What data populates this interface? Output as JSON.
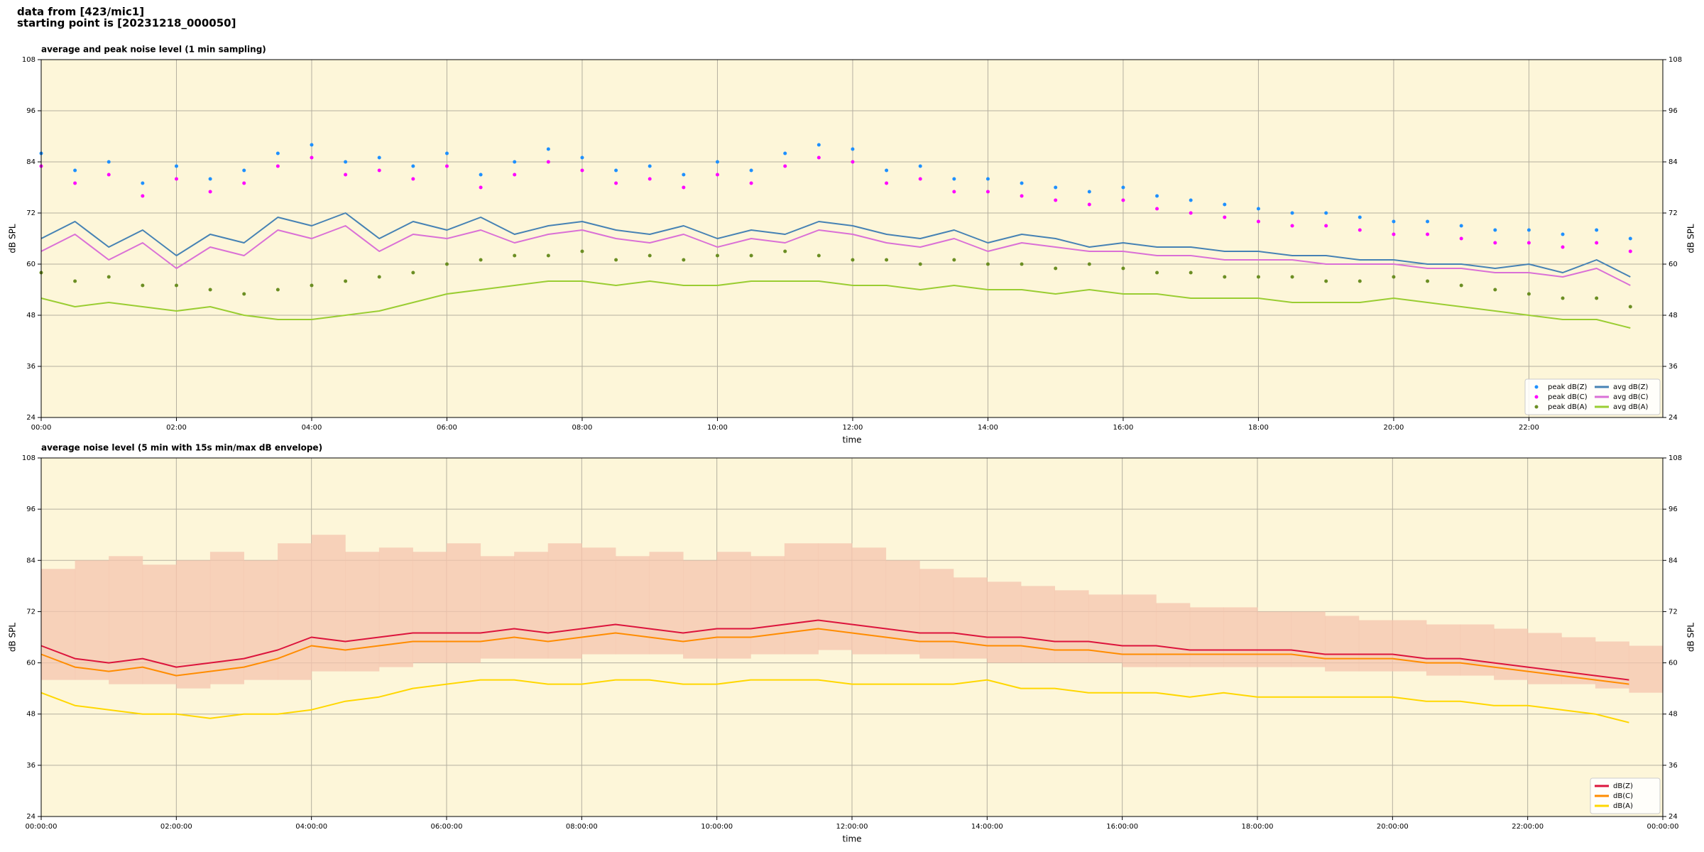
{
  "header": {
    "lines": [
      "data from [423/mic1]",
      "starting point is [20231218_000050]"
    ]
  },
  "chart_data": [
    {
      "type": "line",
      "title": "average and peak noise level (1 min sampling)",
      "xlabel": "time",
      "ylabel": "dB SPL",
      "background": "#fdf6d9",
      "grid": true,
      "legend": "lower right",
      "legend_columns": 2,
      "xlim": [
        0,
        23.98
      ],
      "ylim": [
        24,
        108
      ],
      "yticks": [
        24,
        36,
        48,
        60,
        72,
        84,
        96,
        108
      ],
      "xticks": [
        {
          "value": 0,
          "label": "00:00"
        },
        {
          "value": 2,
          "label": "02:00"
        },
        {
          "value": 4,
          "label": "04:00"
        },
        {
          "value": 6,
          "label": "06:00"
        },
        {
          "value": 8,
          "label": "08:00"
        },
        {
          "value": 10,
          "label": "10:00"
        },
        {
          "value": 12,
          "label": "12:00"
        },
        {
          "value": 14,
          "label": "14:00"
        },
        {
          "value": 16,
          "label": "16:00"
        },
        {
          "value": 18,
          "label": "18:00"
        },
        {
          "value": 20,
          "label": "20:00"
        },
        {
          "value": 22,
          "label": "22:00"
        }
      ],
      "x": [
        0,
        0.5,
        1,
        1.5,
        2,
        2.5,
        3,
        3.5,
        4,
        4.5,
        5,
        5.5,
        6,
        6.5,
        7,
        7.5,
        8,
        8.5,
        9,
        9.5,
        10,
        10.5,
        11,
        11.5,
        12,
        12.5,
        13,
        13.5,
        14,
        14.5,
        15,
        15.5,
        16,
        16.5,
        17,
        17.5,
        18,
        18.5,
        19,
        19.5,
        20,
        20.5,
        21,
        21.5,
        22,
        22.5,
        23,
        23.5
      ],
      "series": [
        {
          "name": "peak dB(Z)",
          "type": "scatter",
          "color": "#1e90ff",
          "values": [
            86,
            82,
            84,
            79,
            83,
            80,
            82,
            86,
            88,
            84,
            85,
            83,
            86,
            81,
            84,
            87,
            85,
            82,
            83,
            81,
            84,
            82,
            86,
            88,
            87,
            82,
            83,
            80,
            80,
            79,
            78,
            77,
            78,
            76,
            75,
            74,
            73,
            72,
            72,
            71,
            70,
            70,
            69,
            68,
            68,
            67,
            68,
            66
          ]
        },
        {
          "name": "peak dB(C)",
          "type": "scatter",
          "color": "#ff00ff",
          "values": [
            83,
            79,
            81,
            76,
            80,
            77,
            79,
            83,
            85,
            81,
            82,
            80,
            83,
            78,
            81,
            84,
            82,
            79,
            80,
            78,
            81,
            79,
            83,
            85,
            84,
            79,
            80,
            77,
            77,
            76,
            75,
            74,
            75,
            73,
            72,
            71,
            70,
            69,
            69,
            68,
            67,
            67,
            66,
            65,
            65,
            64,
            65,
            63
          ]
        },
        {
          "name": "peak dB(A)",
          "type": "scatter",
          "color": "#6b8e23",
          "values": [
            58,
            56,
            57,
            55,
            55,
            54,
            53,
            54,
            55,
            56,
            57,
            58,
            60,
            61,
            62,
            62,
            63,
            61,
            62,
            61,
            62,
            62,
            63,
            62,
            61,
            61,
            60,
            61,
            60,
            60,
            59,
            60,
            59,
            58,
            58,
            57,
            57,
            57,
            56,
            56,
            57,
            56,
            55,
            54,
            53,
            52,
            52,
            50
          ]
        },
        {
          "name": "avg dB(Z)",
          "type": "line",
          "color": "#4682b4",
          "values": [
            66,
            70,
            64,
            68,
            62,
            67,
            65,
            71,
            69,
            72,
            66,
            70,
            68,
            71,
            67,
            69,
            70,
            68,
            67,
            69,
            66,
            68,
            67,
            70,
            69,
            67,
            66,
            68,
            65,
            67,
            66,
            64,
            65,
            64,
            64,
            63,
            63,
            62,
            62,
            61,
            61,
            60,
            60,
            59,
            60,
            58,
            61,
            57
          ]
        },
        {
          "name": "avg dB(C)",
          "type": "line",
          "color": "#da70d6",
          "values": [
            63,
            67,
            61,
            65,
            59,
            64,
            62,
            68,
            66,
            69,
            63,
            67,
            66,
            68,
            65,
            67,
            68,
            66,
            65,
            67,
            64,
            66,
            65,
            68,
            67,
            65,
            64,
            66,
            63,
            65,
            64,
            63,
            63,
            62,
            62,
            61,
            61,
            61,
            60,
            60,
            60,
            59,
            59,
            58,
            58,
            57,
            59,
            55
          ]
        },
        {
          "name": "avg dB(A)",
          "type": "line",
          "color": "#9acd32",
          "values": [
            52,
            50,
            51,
            50,
            49,
            50,
            48,
            47,
            47,
            48,
            49,
            51,
            53,
            54,
            55,
            56,
            56,
            55,
            56,
            55,
            55,
            56,
            56,
            56,
            55,
            55,
            54,
            55,
            54,
            54,
            53,
            54,
            53,
            53,
            52,
            52,
            52,
            51,
            51,
            51,
            52,
            51,
            50,
            49,
            48,
            47,
            47,
            45
          ]
        }
      ]
    },
    {
      "type": "line",
      "title": "average noise level (5 min with 15s min/max dB envelope)",
      "xlabel": "time",
      "ylabel": "dB SPL",
      "background": "#fdf6d9",
      "grid": true,
      "legend": "lower right",
      "legend_columns": 1,
      "xlim": [
        0,
        24
      ],
      "ylim": [
        24,
        108
      ],
      "yticks": [
        24,
        36,
        48,
        60,
        72,
        84,
        96,
        108
      ],
      "xticks": [
        {
          "value": 0,
          "label": "00:00:00"
        },
        {
          "value": 2,
          "label": "02:00:00"
        },
        {
          "value": 4,
          "label": "04:00:00"
        },
        {
          "value": 6,
          "label": "06:00:00"
        },
        {
          "value": 8,
          "label": "08:00:00"
        },
        {
          "value": 10,
          "label": "10:00:00"
        },
        {
          "value": 12,
          "label": "12:00:00"
        },
        {
          "value": 14,
          "label": "14:00:00"
        },
        {
          "value": 16,
          "label": "16:00:00"
        },
        {
          "value": 18,
          "label": "18:00:00"
        },
        {
          "value": 20,
          "label": "20:00:00"
        },
        {
          "value": 22,
          "label": "22:00:00"
        },
        {
          "value": 24,
          "label": "00:00:00"
        }
      ],
      "x": [
        0,
        0.5,
        1,
        1.5,
        2,
        2.5,
        3,
        3.5,
        4,
        4.5,
        5,
        5.5,
        6,
        6.5,
        7,
        7.5,
        8,
        8.5,
        9,
        9.5,
        10,
        10.5,
        11,
        11.5,
        12,
        12.5,
        13,
        13.5,
        14,
        14.5,
        15,
        15.5,
        16,
        16.5,
        17,
        17.5,
        18,
        18.5,
        19,
        19.5,
        20,
        20.5,
        21,
        21.5,
        22,
        22.5,
        23,
        23.5
      ],
      "envelope": {
        "color": "#f4c4ad",
        "lower": [
          56,
          56,
          55,
          55,
          54,
          55,
          56,
          56,
          58,
          58,
          59,
          60,
          60,
          61,
          61,
          61,
          62,
          62,
          62,
          61,
          61,
          62,
          62,
          63,
          62,
          62,
          61,
          61,
          60,
          60,
          60,
          60,
          59,
          59,
          59,
          59,
          59,
          59,
          58,
          58,
          58,
          57,
          57,
          56,
          55,
          55,
          54,
          53
        ],
        "upper": [
          82,
          84,
          85,
          83,
          84,
          86,
          84,
          88,
          90,
          86,
          87,
          86,
          88,
          85,
          86,
          88,
          87,
          85,
          86,
          84,
          86,
          85,
          88,
          88,
          87,
          84,
          82,
          80,
          79,
          78,
          77,
          76,
          76,
          74,
          73,
          73,
          72,
          72,
          71,
          70,
          70,
          69,
          69,
          68,
          67,
          66,
          65,
          64
        ]
      },
      "series": [
        {
          "name": "dB(Z)",
          "type": "line",
          "color": "#dc143c",
          "values": [
            64,
            61,
            60,
            61,
            59,
            60,
            61,
            63,
            66,
            65,
            66,
            67,
            67,
            67,
            68,
            67,
            68,
            69,
            68,
            67,
            68,
            68,
            69,
            70,
            69,
            68,
            67,
            67,
            66,
            66,
            65,
            65,
            64,
            64,
            63,
            63,
            63,
            63,
            62,
            62,
            62,
            61,
            61,
            60,
            59,
            58,
            57,
            56
          ]
        },
        {
          "name": "dB(C)",
          "type": "line",
          "color": "#ff8c00",
          "values": [
            62,
            59,
            58,
            59,
            57,
            58,
            59,
            61,
            64,
            63,
            64,
            65,
            65,
            65,
            66,
            65,
            66,
            67,
            66,
            65,
            66,
            66,
            67,
            68,
            67,
            66,
            65,
            65,
            64,
            64,
            63,
            63,
            62,
            62,
            62,
            62,
            62,
            62,
            61,
            61,
            61,
            60,
            60,
            59,
            58,
            57,
            56,
            55
          ]
        },
        {
          "name": "dB(A)",
          "type": "line",
          "color": "#ffd700",
          "values": [
            53,
            50,
            49,
            48,
            48,
            47,
            48,
            48,
            49,
            51,
            52,
            54,
            55,
            56,
            56,
            55,
            55,
            56,
            56,
            55,
            55,
            56,
            56,
            56,
            55,
            55,
            55,
            55,
            56,
            54,
            54,
            53,
            53,
            53,
            52,
            53,
            52,
            52,
            52,
            52,
            52,
            51,
            51,
            50,
            50,
            49,
            48,
            46
          ]
        }
      ]
    }
  ]
}
